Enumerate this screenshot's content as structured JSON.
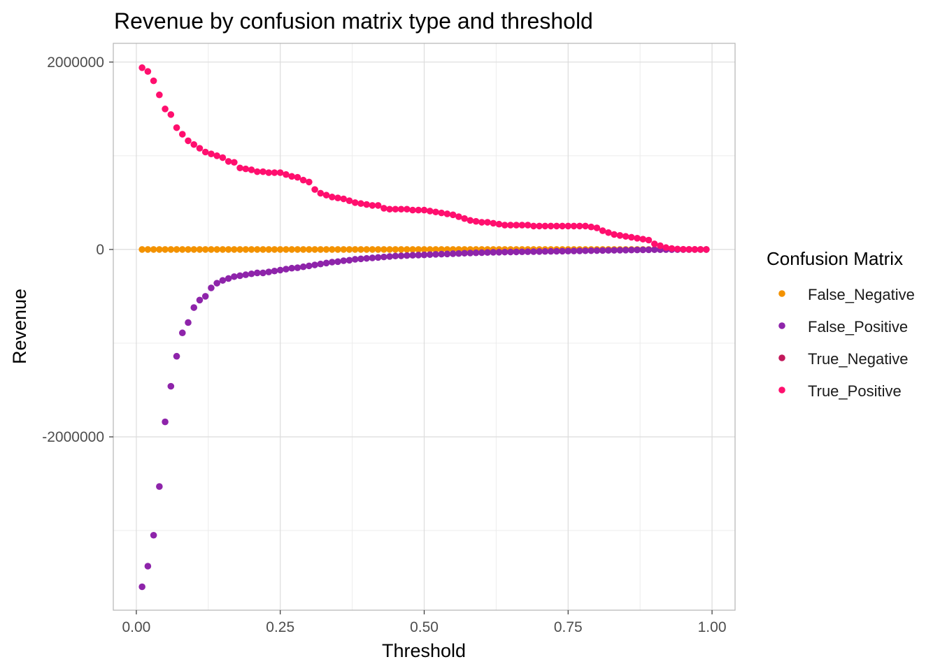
{
  "chart_data": {
    "type": "scatter",
    "title": "Revenue by confusion matrix type and threshold",
    "xlabel": "Threshold",
    "ylabel": "Revenue",
    "xlim": [
      -0.04,
      1.04
    ],
    "ylim": [
      -3850000,
      2200000
    ],
    "x_ticks": [
      0,
      0.25,
      0.5,
      0.75,
      1.0
    ],
    "x_tick_labels": [
      "0.00",
      "0.25",
      "0.50",
      "0.75",
      "1.00"
    ],
    "y_ticks": [
      -2000000,
      0,
      2000000
    ],
    "y_tick_labels": [
      "-2000000",
      "0",
      "2000000"
    ],
    "y_minor_ticks": [
      -3000000,
      -1000000,
      1000000
    ],
    "x_minor_ticks": [
      0.125,
      0.375,
      0.625,
      0.875
    ],
    "grid": true,
    "legend_title": "Confusion Matrix",
    "legend_position": "right",
    "series": [
      {
        "name": "False_Negative",
        "color": "#F39200",
        "x": [
          0.01,
          0.02,
          0.03,
          0.04,
          0.05,
          0.06,
          0.07,
          0.08,
          0.09,
          0.1,
          0.11,
          0.12,
          0.13,
          0.14,
          0.15,
          0.16,
          0.17,
          0.18,
          0.19,
          0.2,
          0.21,
          0.22,
          0.23,
          0.24,
          0.25,
          0.26,
          0.27,
          0.28,
          0.29,
          0.3,
          0.31,
          0.32,
          0.33,
          0.34,
          0.35,
          0.36,
          0.37,
          0.38,
          0.39,
          0.4,
          0.41,
          0.42,
          0.43,
          0.44,
          0.45,
          0.46,
          0.47,
          0.48,
          0.49,
          0.5,
          0.51,
          0.52,
          0.53,
          0.54,
          0.55,
          0.56,
          0.57,
          0.58,
          0.59,
          0.6,
          0.61,
          0.62,
          0.63,
          0.64,
          0.65,
          0.66,
          0.67,
          0.68,
          0.69,
          0.7,
          0.71,
          0.72,
          0.73,
          0.74,
          0.75,
          0.76,
          0.77,
          0.78,
          0.79,
          0.8,
          0.81,
          0.82,
          0.83,
          0.84,
          0.85,
          0.86,
          0.87,
          0.88,
          0.89,
          0.9,
          0.91,
          0.92,
          0.93,
          0.94,
          0.95,
          0.96,
          0.97,
          0.98,
          0.99
        ],
        "y": [
          0,
          0,
          0,
          0,
          0,
          0,
          0,
          0,
          0,
          0,
          0,
          0,
          0,
          0,
          0,
          0,
          0,
          0,
          0,
          0,
          0,
          0,
          0,
          0,
          0,
          0,
          0,
          0,
          0,
          0,
          0,
          0,
          0,
          0,
          0,
          0,
          0,
          0,
          0,
          0,
          0,
          0,
          0,
          0,
          0,
          0,
          0,
          0,
          0,
          0,
          0,
          0,
          0,
          0,
          0,
          0,
          0,
          0,
          0,
          0,
          0,
          0,
          0,
          0,
          0,
          0,
          0,
          0,
          0,
          0,
          0,
          0,
          0,
          0,
          0,
          0,
          0,
          0,
          0,
          0,
          0,
          0,
          0,
          0,
          0,
          0,
          0,
          0,
          0,
          0,
          0,
          0,
          0,
          0,
          0,
          0,
          0,
          0,
          0
        ]
      },
      {
        "name": "False_Positive",
        "color": "#8E24AA",
        "x": [
          0.01,
          0.02,
          0.03,
          0.04,
          0.05,
          0.06,
          0.07,
          0.08,
          0.09,
          0.1,
          0.11,
          0.12,
          0.13,
          0.14,
          0.15,
          0.16,
          0.17,
          0.18,
          0.19,
          0.2,
          0.21,
          0.22,
          0.23,
          0.24,
          0.25,
          0.26,
          0.27,
          0.28,
          0.29,
          0.3,
          0.31,
          0.32,
          0.33,
          0.34,
          0.35,
          0.36,
          0.37,
          0.38,
          0.39,
          0.4,
          0.41,
          0.42,
          0.43,
          0.44,
          0.45,
          0.46,
          0.47,
          0.48,
          0.49,
          0.5,
          0.51,
          0.52,
          0.53,
          0.54,
          0.55,
          0.56,
          0.57,
          0.58,
          0.59,
          0.6,
          0.61,
          0.62,
          0.63,
          0.64,
          0.65,
          0.66,
          0.67,
          0.68,
          0.69,
          0.7,
          0.71,
          0.72,
          0.73,
          0.74,
          0.75,
          0.76,
          0.77,
          0.78,
          0.79,
          0.8,
          0.81,
          0.82,
          0.83,
          0.84,
          0.85,
          0.86,
          0.87,
          0.88,
          0.89,
          0.9,
          0.91,
          0.92,
          0.93,
          0.94,
          0.95,
          0.96,
          0.97,
          0.98,
          0.99
        ],
        "y": [
          -3600000,
          -3380000,
          -3050000,
          -2530000,
          -1840000,
          -1460000,
          -1140000,
          -890000,
          -780000,
          -620000,
          -540000,
          -500000,
          -410000,
          -360000,
          -330000,
          -310000,
          -290000,
          -280000,
          -270000,
          -260000,
          -250000,
          -250000,
          -240000,
          -230000,
          -220000,
          -210000,
          -200000,
          -195000,
          -185000,
          -175000,
          -165000,
          -155000,
          -145000,
          -135000,
          -130000,
          -120000,
          -115000,
          -105000,
          -100000,
          -95000,
          -90000,
          -85000,
          -80000,
          -75000,
          -70000,
          -68000,
          -65000,
          -62000,
          -60000,
          -58000,
          -55000,
          -52000,
          -50000,
          -48000,
          -45000,
          -43000,
          -40000,
          -38000,
          -36000,
          -34000,
          -32000,
          -30000,
          -29000,
          -28000,
          -27000,
          -26000,
          -25000,
          -24000,
          -23000,
          -22000,
          -21000,
          -20000,
          -19000,
          -18000,
          -17000,
          -16000,
          -15000,
          -14000,
          -13000,
          -12000,
          -11000,
          -10000,
          -9000,
          -8000,
          -7000,
          -6000,
          -5000,
          -4000,
          -3000,
          -2500,
          -2000,
          -1500,
          -1200,
          -1000,
          -800,
          -600,
          -400,
          -200,
          -100
        ]
      },
      {
        "name": "True_Negative",
        "color": "#C2185B",
        "x": [],
        "y": []
      },
      {
        "name": "True_Positive",
        "color": "#FF0F6E",
        "x": [
          0.01,
          0.02,
          0.03,
          0.04,
          0.05,
          0.06,
          0.07,
          0.08,
          0.09,
          0.1,
          0.11,
          0.12,
          0.13,
          0.14,
          0.15,
          0.16,
          0.17,
          0.18,
          0.19,
          0.2,
          0.21,
          0.22,
          0.23,
          0.24,
          0.25,
          0.26,
          0.27,
          0.28,
          0.29,
          0.3,
          0.31,
          0.32,
          0.33,
          0.34,
          0.35,
          0.36,
          0.37,
          0.38,
          0.39,
          0.4,
          0.41,
          0.42,
          0.43,
          0.44,
          0.45,
          0.46,
          0.47,
          0.48,
          0.49,
          0.5,
          0.51,
          0.52,
          0.53,
          0.54,
          0.55,
          0.56,
          0.57,
          0.58,
          0.59,
          0.6,
          0.61,
          0.62,
          0.63,
          0.64,
          0.65,
          0.66,
          0.67,
          0.68,
          0.69,
          0.7,
          0.71,
          0.72,
          0.73,
          0.74,
          0.75,
          0.76,
          0.77,
          0.78,
          0.79,
          0.8,
          0.81,
          0.82,
          0.83,
          0.84,
          0.85,
          0.86,
          0.87,
          0.88,
          0.89,
          0.9,
          0.91,
          0.92,
          0.93,
          0.94,
          0.95,
          0.96,
          0.97,
          0.98,
          0.99
        ],
        "y": [
          1940000,
          1900000,
          1800000,
          1650000,
          1500000,
          1440000,
          1300000,
          1230000,
          1160000,
          1120000,
          1080000,
          1040000,
          1020000,
          1000000,
          980000,
          940000,
          930000,
          870000,
          860000,
          850000,
          830000,
          830000,
          820000,
          820000,
          820000,
          800000,
          780000,
          770000,
          740000,
          720000,
          640000,
          600000,
          580000,
          560000,
          550000,
          540000,
          520000,
          500000,
          490000,
          480000,
          470000,
          470000,
          440000,
          430000,
          430000,
          430000,
          430000,
          420000,
          420000,
          420000,
          410000,
          400000,
          390000,
          380000,
          370000,
          350000,
          330000,
          310000,
          300000,
          290000,
          290000,
          280000,
          270000,
          260000,
          260000,
          260000,
          260000,
          260000,
          250000,
          250000,
          250000,
          250000,
          250000,
          250000,
          250000,
          250000,
          250000,
          250000,
          240000,
          230000,
          200000,
          180000,
          160000,
          150000,
          140000,
          130000,
          120000,
          110000,
          100000,
          60000,
          40000,
          20000,
          10000,
          5000,
          2000,
          1000,
          500,
          200,
          100
        ]
      }
    ]
  }
}
